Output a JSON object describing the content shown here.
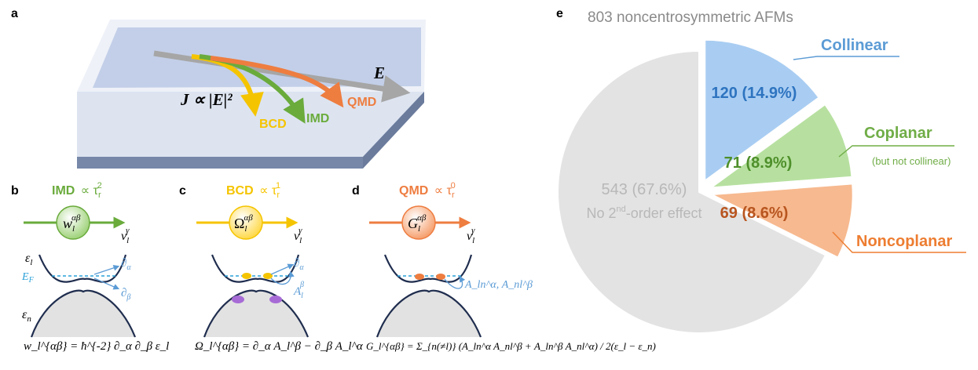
{
  "panel_labels": {
    "a": "a",
    "b": "b",
    "c": "c",
    "d": "d",
    "e": "e"
  },
  "panel_a": {
    "current_label": "J ∝ |E|²",
    "field_label": "E",
    "arrows": [
      {
        "label": "BCD",
        "color": "#f5c400"
      },
      {
        "label": "IMD",
        "color": "#6aab3c"
      },
      {
        "label": "QMD",
        "color": "#ee7d40"
      }
    ]
  },
  "panel_b": {
    "title_name": "IMD",
    "title_scaling": "∝ τ",
    "title_sub": "r",
    "title_sup": "2",
    "circle_symbol": "w",
    "circle_sub": "l",
    "circle_sup": "αβ",
    "velocity": "v",
    "velocity_sub": "l",
    "velocity_sup": "γ",
    "band_upper": "ε",
    "band_upper_sub": "l",
    "band_lower": "ε",
    "band_lower_sub": "n",
    "fermi": "E",
    "fermi_sub": "F",
    "deriv_a": "∂",
    "deriv_a_sub": "α",
    "deriv_b": "∂",
    "deriv_b_sub": "β",
    "formula": "w_l^{αβ} = ħ^{-2} ∂_α ∂_β ε_l",
    "color": "#6aab3c"
  },
  "panel_c": {
    "title_name": "BCD",
    "title_scaling": "∝ τ",
    "title_sub": "r",
    "title_sup": "1",
    "circle_symbol": "Ω",
    "circle_sub": "l",
    "circle_sup": "αβ",
    "velocity": "v",
    "velocity_sub": "l",
    "velocity_sup": "γ",
    "deriv_a": "∂",
    "deriv_a_sub": "α",
    "conn": "A",
    "conn_sub": "l",
    "conn_sup": "β",
    "formula": "Ω_l^{αβ} = ∂_α A_l^β − ∂_β A_l^α",
    "color": "#f5c400"
  },
  "panel_d": {
    "title_name": "QMD",
    "title_scaling": "∝ τ",
    "title_sub": "r",
    "title_sup": "0",
    "circle_symbol": "G",
    "circle_sub": "l",
    "circle_sup": "αβ",
    "velocity": "v",
    "velocity_sub": "l",
    "velocity_sup": "γ",
    "conn_label": "A_ln^α, A_nl^β",
    "formula": "G_l^{αβ} = Σ_{n(≠l)} (A_ln^α A_nl^β + A_ln^β A_nl^α) / 2(ε_l − ε_n)",
    "color": "#ee7d40"
  },
  "chart_data": {
    "type": "pie",
    "title": "803 noncentrosymmetric AFMs",
    "total": 803,
    "slices": [
      {
        "name": "Collinear",
        "count": 120,
        "percent": 14.9,
        "value_label": "120 (14.9%)",
        "color": "#a9cdf2",
        "text_color": "#2e74c0",
        "label_color": "#5b9bd5"
      },
      {
        "name": "Coplanar",
        "note": "(but not collinear)",
        "count": 71,
        "percent": 8.9,
        "value_label": "71 (8.9%)",
        "color": "#b7e0a0",
        "text_color": "#4e8f2a",
        "label_color": "#70ad47"
      },
      {
        "name": "Noncoplanar",
        "count": 69,
        "percent": 8.6,
        "value_label": "69 (8.6%)",
        "color": "#f7b98f",
        "text_color": "#b8551f",
        "label_color": "#ed7d31"
      },
      {
        "name": "",
        "count": 543,
        "percent": 67.6,
        "value_label": "543 (67.6%)",
        "note_main": "No 2",
        "note_sup": "nd",
        "note_rest": "-order effect",
        "color": "#e3e3e3",
        "text_color": "#b8b8b8"
      }
    ]
  }
}
